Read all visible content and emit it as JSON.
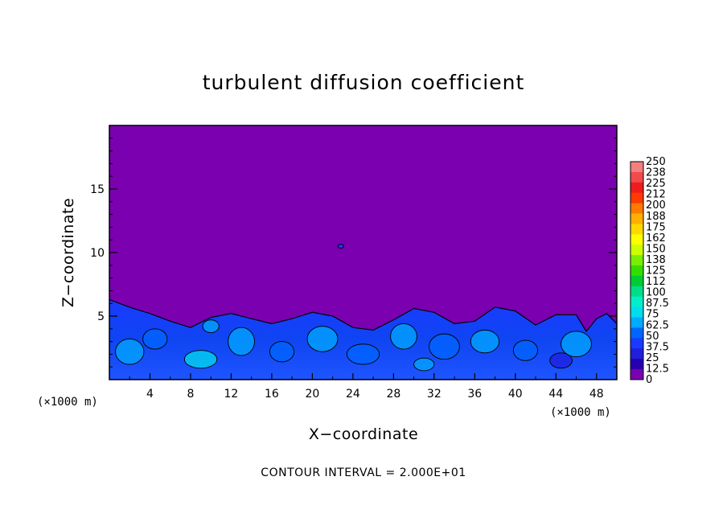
{
  "chart_data": {
    "type": "heatmap",
    "title": "turbulent diffusion coefficient",
    "xlabel": "X−coordinate",
    "ylabel": "Z−coordinate",
    "x_unit_left": "(×1000 m)",
    "x_unit_right": "(×1000 m)",
    "xlim": [
      0,
      50
    ],
    "ylim": [
      0,
      20
    ],
    "x_ticks": [
      4,
      8,
      12,
      16,
      20,
      24,
      28,
      32,
      36,
      40,
      44,
      48
    ],
    "y_ticks": [
      5,
      10,
      15
    ],
    "footer": "CONTOUR INTERVAL = 2.000E+01",
    "background_color": "#7a00b0",
    "colorbar": {
      "labels": [
        "250",
        "238",
        "225",
        "212",
        "200",
        "188",
        "175",
        "162",
        "150",
        "138",
        "125",
        "112",
        "100",
        "87.5",
        "75",
        "62.5",
        "50",
        "37.5",
        "25",
        "12.5",
        "0"
      ],
      "colors": [
        "#f47f7f",
        "#f24a4a",
        "#ee1c1c",
        "#ff3a00",
        "#ff7a00",
        "#ffb000",
        "#ffd800",
        "#ffff00",
        "#ccff00",
        "#7aee00",
        "#33dd00",
        "#00cc33",
        "#00dd88",
        "#00eecc",
        "#00ddee",
        "#00aaff",
        "#0066ff",
        "#1a3aff",
        "#1f1fdd",
        "#2600b0",
        "#7a00b0"
      ]
    },
    "turbulent_layer_top_z": [
      6.3,
      5.7,
      5.2,
      4.6,
      4.1,
      4.9,
      5.2,
      4.8,
      4.4,
      4.8,
      5.3,
      5.0,
      4.1,
      3.9,
      4.7,
      5.6,
      5.3,
      4.4,
      4.6,
      5.7,
      5.4,
      4.3,
      5.1,
      5.1,
      3.8,
      4.8,
      5.2,
      4.4
    ],
    "turbulent_layer_top_x": [
      0,
      2,
      4,
      6,
      8,
      10,
      12,
      14,
      16,
      18,
      20,
      22,
      24,
      26,
      28,
      30,
      32,
      34,
      36,
      38,
      40,
      42,
      44,
      46,
      47,
      48,
      49,
      50
    ]
  }
}
